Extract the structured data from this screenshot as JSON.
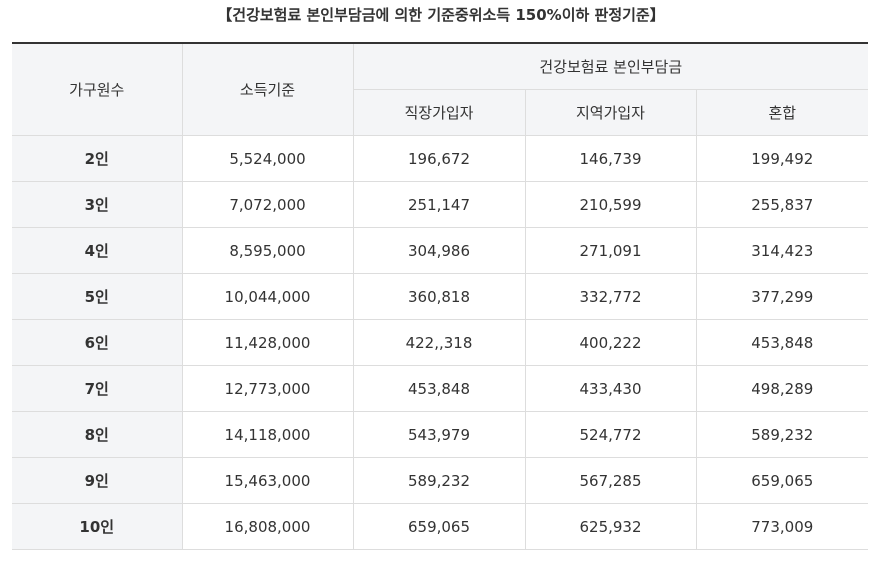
{
  "caption": "【건강보험료 본인부담금에 의한 기준중위소득 150%이하 판정기준】",
  "headers": {
    "household": "가구원수",
    "income": "소득기준",
    "group": "건강보험료 본인부담금",
    "workplace": "직장가입자",
    "regional": "지역가입자",
    "mixed": "혼합"
  },
  "rows": [
    [
      "2인",
      "5,524,000",
      "196,672",
      "146,739",
      "199,492"
    ],
    [
      "3인",
      "7,072,000",
      "251,147",
      "210,599",
      "255,837"
    ],
    [
      "4인",
      "8,595,000",
      "304,986",
      "271,091",
      "314,423"
    ],
    [
      "5인",
      "10,044,000",
      "360,818",
      "332,772",
      "377,299"
    ],
    [
      "6인",
      "11,428,000",
      "422,,318",
      "400,222",
      "453,848"
    ],
    [
      "7인",
      "12,773,000",
      "453,848",
      "433,430",
      "498,289"
    ],
    [
      "8인",
      "14,118,000",
      "543,979",
      "524,772",
      "589,232"
    ],
    [
      "9인",
      "15,463,000",
      "589,232",
      "567,285",
      "659,065"
    ],
    [
      "10인",
      "16,808,000",
      "659,065",
      "625,932",
      "773,009"
    ]
  ]
}
